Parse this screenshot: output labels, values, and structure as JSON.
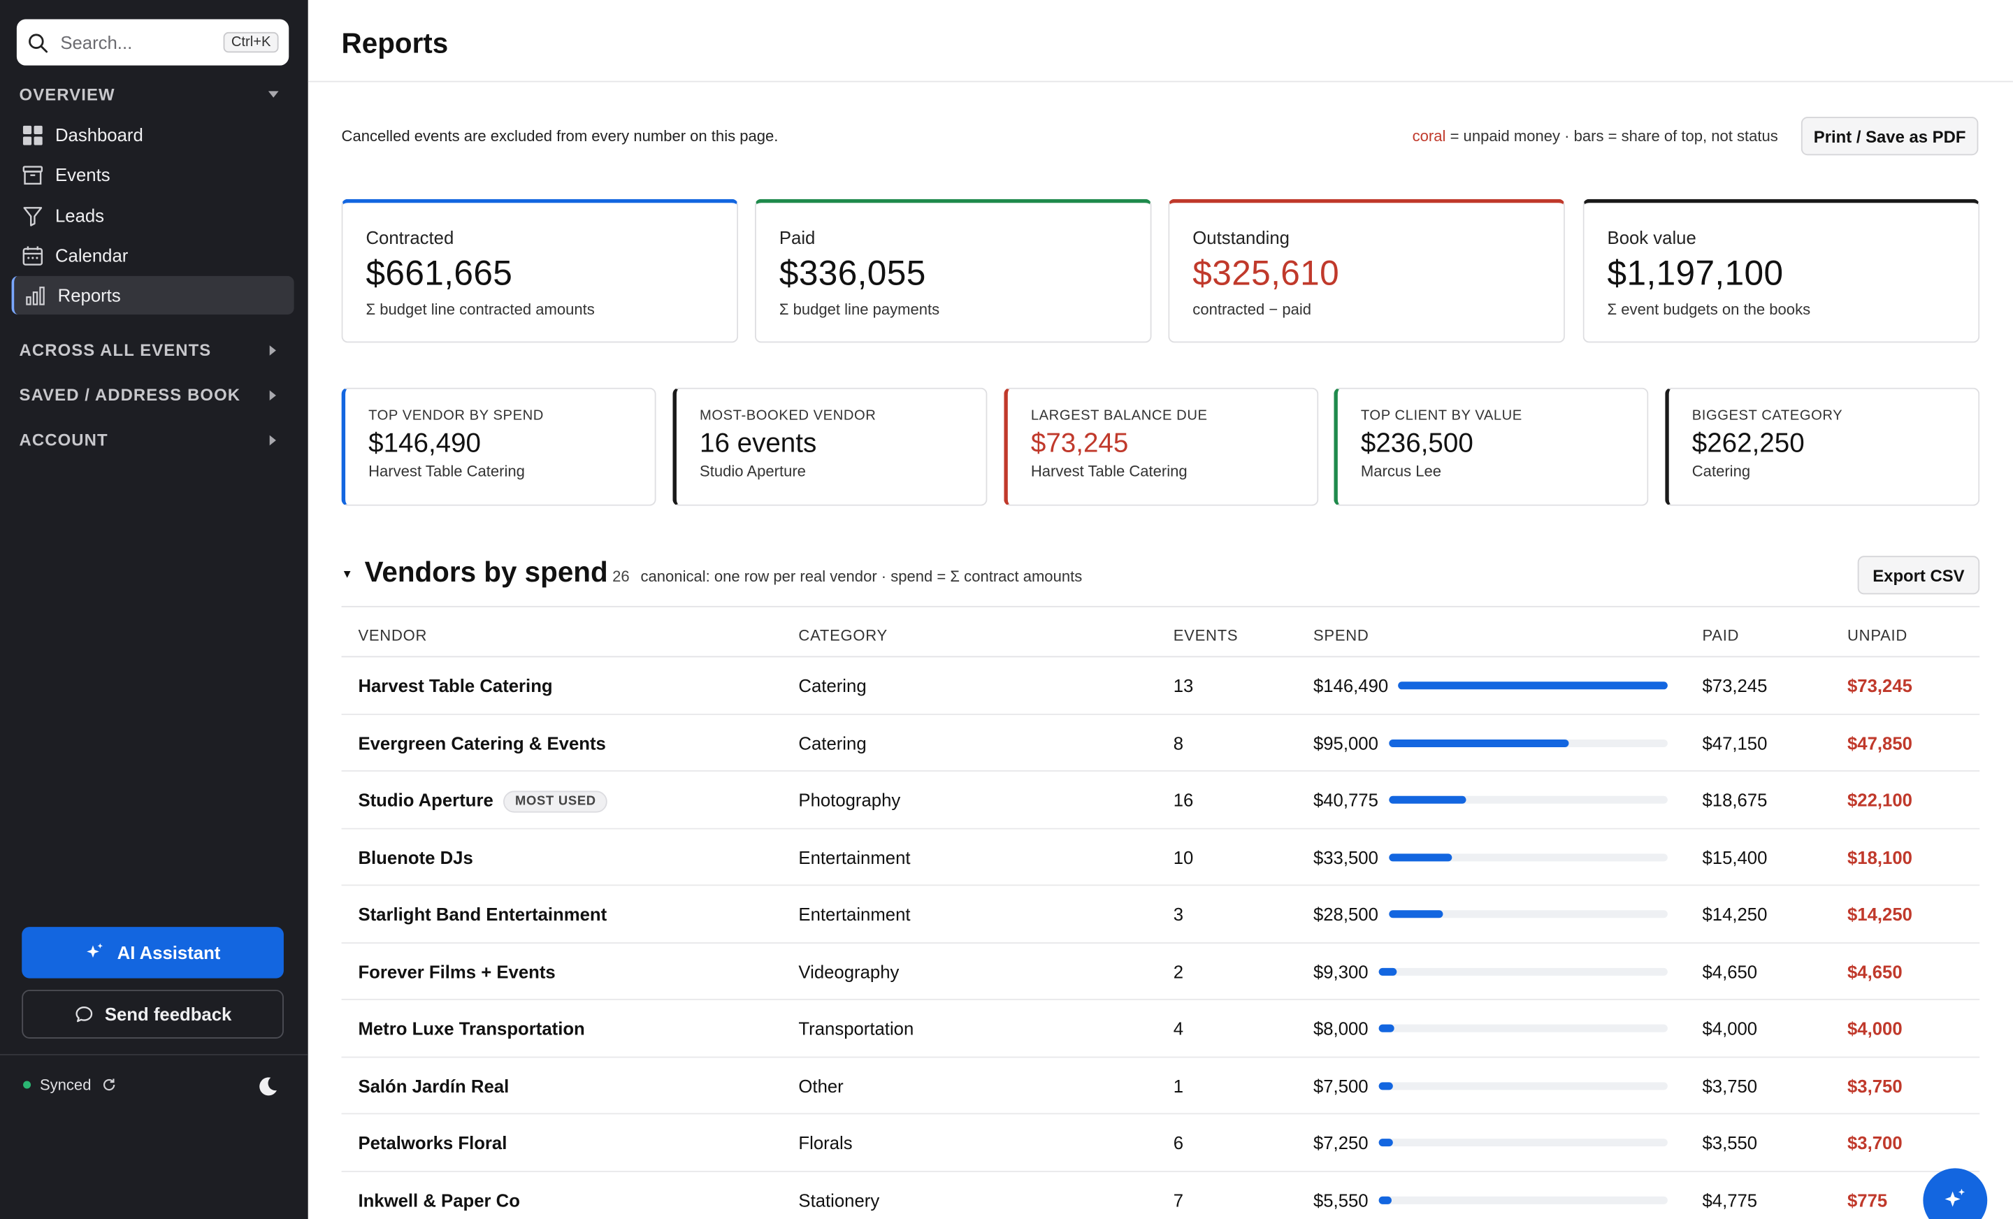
{
  "sidebar": {
    "search_placeholder": "Search...",
    "search_shortcut": "Ctrl+K",
    "overview_label": "OVERVIEW",
    "items": [
      {
        "label": "Dashboard",
        "icon": "grid-icon"
      },
      {
        "label": "Events",
        "icon": "archive-icon"
      },
      {
        "label": "Leads",
        "icon": "funnel-icon"
      },
      {
        "label": "Calendar",
        "icon": "calendar-icon"
      },
      {
        "label": "Reports",
        "icon": "bar-chart-icon",
        "active": true
      }
    ],
    "sections": [
      "ACROSS ALL EVENTS",
      "SAVED / ADDRESS BOOK",
      "ACCOUNT"
    ],
    "ai_button": "AI Assistant",
    "feedback_button": "Send feedback",
    "sync_status": "Synced"
  },
  "header": {
    "title": "Reports"
  },
  "note": "Cancelled events are excluded from every number on this page.",
  "legend": {
    "coral": "coral",
    "rest": " = unpaid money · bars = share of top, not status"
  },
  "print_button": "Print / Save as PDF",
  "colors": {
    "accent": "#1366e0",
    "coral": "#c0392b",
    "contracted": "#1366e0",
    "paid": "#1f8a4c",
    "outstanding": "#c0392b",
    "book": "#1a1a1a"
  },
  "kpis": [
    {
      "label": "Contracted",
      "value": "$661,665",
      "sub": "Σ budget line contracted amounts"
    },
    {
      "label": "Paid",
      "value": "$336,055",
      "sub": "Σ budget line payments"
    },
    {
      "label": "Outstanding",
      "value": "$325,610",
      "sub": "contracted − paid"
    },
    {
      "label": "Book value",
      "value": "$1,197,100",
      "sub": "Σ event budgets on the books"
    }
  ],
  "highlights": [
    {
      "label": "TOP VENDOR BY SPEND",
      "value": "$146,490",
      "sub": "Harvest Table Catering"
    },
    {
      "label": "MOST-BOOKED VENDOR",
      "value": "16 events",
      "sub": "Studio Aperture"
    },
    {
      "label": "LARGEST BALANCE DUE",
      "value": "$73,245",
      "sub": "Harvest Table Catering"
    },
    {
      "label": "TOP CLIENT BY VALUE",
      "value": "$236,500",
      "sub": "Marcus Lee"
    },
    {
      "label": "BIGGEST CATEGORY",
      "value": "$262,250",
      "sub": "Catering"
    }
  ],
  "vendors_section": {
    "title": "Vendors by spend",
    "count": "26",
    "description": "canonical: one row per real vendor · spend = Σ contract amounts",
    "export_button": "Export CSV",
    "columns": [
      "VENDOR",
      "CATEGORY",
      "EVENTS",
      "SPEND",
      "PAID",
      "UNPAID"
    ],
    "rows": [
      {
        "vendor": "Harvest Table Catering",
        "category": "Catering",
        "events": "13",
        "spend": "$146,490",
        "share": 1.0,
        "paid": "$73,245",
        "unpaid": "$73,245"
      },
      {
        "vendor": "Evergreen Catering & Events",
        "category": "Catering",
        "events": "8",
        "spend": "$95,000",
        "share": 0.648,
        "paid": "$47,150",
        "unpaid": "$47,850"
      },
      {
        "vendor": "Studio Aperture",
        "badge": "MOST USED",
        "category": "Photography",
        "events": "16",
        "spend": "$40,775",
        "share": 0.278,
        "paid": "$18,675",
        "unpaid": "$22,100"
      },
      {
        "vendor": "Bluenote DJs",
        "category": "Entertainment",
        "events": "10",
        "spend": "$33,500",
        "share": 0.229,
        "paid": "$15,400",
        "unpaid": "$18,100"
      },
      {
        "vendor": "Starlight Band Entertainment",
        "category": "Entertainment",
        "events": "3",
        "spend": "$28,500",
        "share": 0.195,
        "paid": "$14,250",
        "unpaid": "$14,250"
      },
      {
        "vendor": "Forever Films + Events",
        "category": "Videography",
        "events": "2",
        "spend": "$9,300",
        "share": 0.063,
        "paid": "$4,650",
        "unpaid": "$4,650"
      },
      {
        "vendor": "Metro Luxe Transportation",
        "category": "Transportation",
        "events": "4",
        "spend": "$8,000",
        "share": 0.055,
        "paid": "$4,000",
        "unpaid": "$4,000"
      },
      {
        "vendor": "Salón Jardín Real",
        "category": "Other",
        "events": "1",
        "spend": "$7,500",
        "share": 0.051,
        "paid": "$3,750",
        "unpaid": "$3,750"
      },
      {
        "vendor": "Petalworks Floral",
        "category": "Florals",
        "events": "6",
        "spend": "$7,250",
        "share": 0.049,
        "paid": "$3,550",
        "unpaid": "$3,700"
      },
      {
        "vendor": "Inkwell & Paper Co",
        "category": "Stationery",
        "events": "7",
        "spend": "$5,550",
        "share": 0.038,
        "paid": "$4,775",
        "unpaid": "$775"
      }
    ]
  }
}
